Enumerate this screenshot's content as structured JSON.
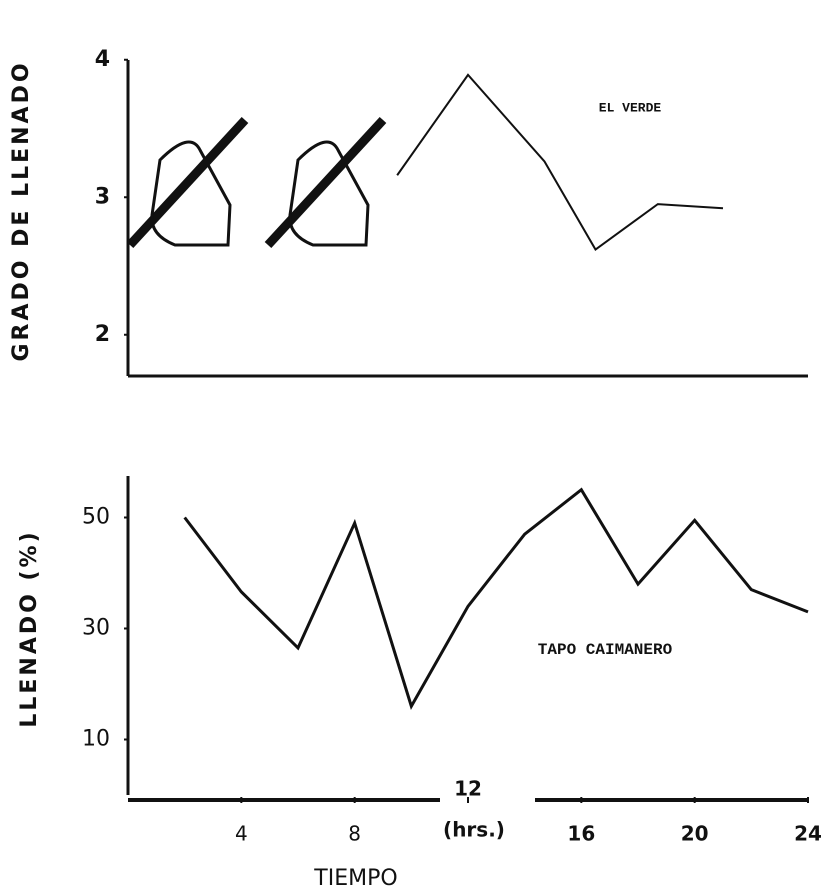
{
  "chart_data": [
    {
      "type": "line",
      "y_label": "GRADO DE LLENADO",
      "annotation": "EL VERDE",
      "x": [
        9.5,
        12,
        14.7,
        16.5,
        18.7,
        21
      ],
      "series": [
        {
          "color": "#111111",
          "values": [
            3.16,
            3.89,
            3.26,
            2.62,
            2.95,
            2.92
          ]
        }
      ],
      "xlim": [
        0,
        24
      ],
      "ylim": [
        1.7,
        4.1
      ],
      "yticks": [
        2,
        3,
        4
      ]
    },
    {
      "type": "line",
      "y_label": "LLENADO (%)",
      "annotation": "TAPO CAIMANERO",
      "x_label": "TIEMPO",
      "x_unit": "(hrs.)",
      "x": [
        2,
        4,
        6,
        8,
        10,
        12,
        14,
        16,
        18,
        20,
        22,
        24
      ],
      "series": [
        {
          "color": "#111111",
          "values": [
            50,
            36.6,
            26.5,
            49,
            16,
            34,
            47,
            55,
            38,
            49.5,
            37,
            33
          ]
        }
      ],
      "xlim": [
        0,
        24
      ],
      "xticks": [
        4,
        8,
        12,
        16,
        20,
        24
      ],
      "ylim": [
        0,
        60
      ],
      "yticks": [
        10,
        30,
        50
      ]
    }
  ]
}
